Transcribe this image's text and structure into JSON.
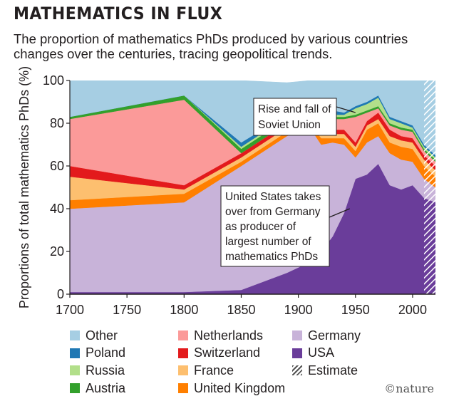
{
  "title": "MATHEMATICS IN FLUX",
  "subtitle": "The proportion of mathematics PhDs produced by various countries changes over the centuries, tracing geopolitical trends.",
  "credit": "©nature",
  "chart_data": {
    "type": "area",
    "stacked": true,
    "ylabel": "Proportions of total mathematics PhDs (%)",
    "xlabel": "",
    "xlim": [
      1700,
      2020
    ],
    "ylim": [
      0,
      100
    ],
    "xticks": [
      1700,
      1750,
      1800,
      1850,
      1900,
      1950,
      2000
    ],
    "yticks": [
      0,
      20,
      40,
      60,
      80,
      100
    ],
    "estimate_from": 2010,
    "x": [
      1700,
      1800,
      1850,
      1890,
      1910,
      1920,
      1930,
      1940,
      1950,
      1960,
      1970,
      1980,
      1990,
      2000,
      2010,
      2020
    ],
    "series": [
      {
        "name": "USA",
        "color": "#6a3d9a",
        "values": [
          1,
          1,
          2,
          10,
          15,
          20,
          27,
          38,
          54,
          56,
          61,
          51,
          49,
          51,
          45,
          43
        ]
      },
      {
        "name": "Germany",
        "color": "#c8b3d9",
        "values": [
          39,
          42,
          58,
          64,
          63,
          50,
          44,
          32,
          10,
          15,
          13,
          15,
          14,
          11,
          9,
          7
        ]
      },
      {
        "name": "United Kingdom",
        "color": "#ff7f00",
        "values": [
          4,
          4,
          2,
          2,
          2,
          3,
          2,
          3,
          3,
          6,
          6,
          5,
          6,
          6,
          6,
          5
        ]
      },
      {
        "name": "France",
        "color": "#fdbf6f",
        "values": [
          11,
          2,
          2,
          2,
          2,
          2,
          2,
          2,
          2,
          2,
          2,
          3,
          3,
          3,
          3,
          3
        ]
      },
      {
        "name": "Switzerland",
        "color": "#e31a1c",
        "values": [
          5,
          2,
          2,
          2,
          2,
          2,
          2,
          2,
          2,
          2,
          3,
          3,
          2,
          2,
          2,
          2
        ]
      },
      {
        "name": "Netherlands",
        "color": "#fb9a99",
        "values": [
          22,
          40,
          0,
          0,
          0,
          3,
          5,
          5,
          12,
          4,
          2,
          2,
          3,
          3,
          2,
          2
        ]
      },
      {
        "name": "Austria",
        "color": "#33a02c",
        "values": [
          1,
          2,
          2,
          2,
          2,
          1,
          1,
          1,
          1,
          1,
          1,
          1,
          1,
          1,
          1,
          1
        ]
      },
      {
        "name": "Russia",
        "color": "#b2df8a",
        "values": [
          0,
          0,
          1,
          1,
          1,
          1,
          1,
          1,
          3,
          3,
          4,
          2,
          2,
          1,
          1,
          1
        ]
      },
      {
        "name": "Poland",
        "color": "#1f78b4",
        "values": [
          0,
          0,
          2,
          1,
          1,
          2,
          2,
          1,
          1,
          1,
          1,
          1,
          1,
          1,
          1,
          1
        ]
      },
      {
        "name": "Other",
        "color": "#a6cee3",
        "values": [
          17,
          7,
          29,
          15,
          12,
          16,
          14,
          15,
          12,
          10,
          7,
          17,
          19,
          21,
          30,
          35
        ]
      }
    ],
    "legend": [
      {
        "label": "Other",
        "color": "#a6cee3"
      },
      {
        "label": "Poland",
        "color": "#1f78b4"
      },
      {
        "label": "Russia",
        "color": "#b2df8a"
      },
      {
        "label": "Austria",
        "color": "#33a02c"
      },
      {
        "label": "Netherlands",
        "color": "#fb9a99"
      },
      {
        "label": "Switzerland",
        "color": "#e31a1c"
      },
      {
        "label": "France",
        "color": "#fdbf6f"
      },
      {
        "label": "United Kingdom",
        "color": "#ff7f00"
      },
      {
        "label": "Germany",
        "color": "#c8b3d9"
      },
      {
        "label": "USA",
        "color": "#6a3d9a"
      },
      {
        "label": "Estimate",
        "color": "hatch"
      }
    ],
    "annotations": [
      {
        "text": [
          "Rise and fall of",
          "Soviet Union"
        ],
        "points_to": {
          "x": 1950,
          "y": 85
        }
      },
      {
        "text": [
          "United States takes",
          "over from Germany",
          "as producer of",
          "largest number of",
          "mathematics PhDs"
        ],
        "points_to": {
          "x": 1945,
          "y": 40
        }
      }
    ]
  }
}
